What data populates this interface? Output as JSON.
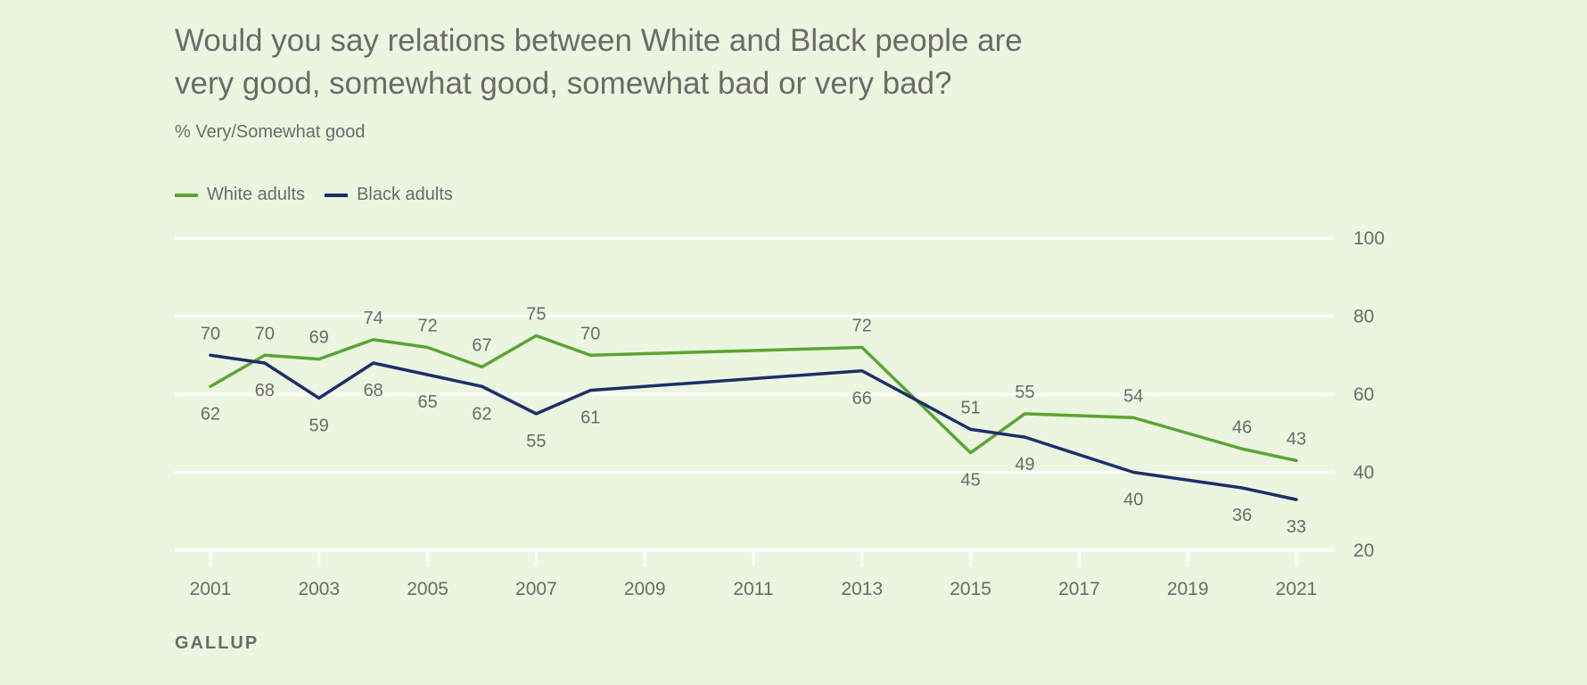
{
  "title_lines": [
    "Would you say relations between White and Black people are",
    "very good, somewhat good, somewhat bad or very bad?"
  ],
  "subtitle": "% Very/Somewhat good",
  "source": "GALLUP",
  "colors": {
    "white": "#5aa532",
    "black": "#1d2f6b",
    "grid": "#ffffff",
    "background": "#ebf5df"
  },
  "chart_data": {
    "type": "line",
    "ylim": [
      20,
      100
    ],
    "yticks": [
      20,
      40,
      60,
      80,
      100
    ],
    "xlim": [
      2001,
      2021
    ],
    "xticks": [
      2001,
      2003,
      2005,
      2007,
      2009,
      2011,
      2013,
      2015,
      2017,
      2019,
      2021
    ],
    "x_minor_ticks": [
      2001,
      2003,
      2005,
      2007,
      2009,
      2011,
      2013,
      2015,
      2017,
      2019,
      2021
    ],
    "grid": true,
    "y_axis_side": "right",
    "legend_placement": "top-left",
    "series": [
      {
        "name": "White adults",
        "color": "#5aa532",
        "label_position": "above-alternate",
        "points": [
          {
            "x": 2001,
            "y": 62,
            "label_pos": "below"
          },
          {
            "x": 2002,
            "y": 70,
            "label_pos": "above"
          },
          {
            "x": 2003,
            "y": 69,
            "label_pos": "above"
          },
          {
            "x": 2004,
            "y": 74,
            "label_pos": "above"
          },
          {
            "x": 2005,
            "y": 72,
            "label_pos": "above"
          },
          {
            "x": 2006,
            "y": 67,
            "label_pos": "above"
          },
          {
            "x": 2007,
            "y": 75,
            "label_pos": "above"
          },
          {
            "x": 2008,
            "y": 70,
            "label_pos": "above"
          },
          {
            "x": 2013,
            "y": 72,
            "label_pos": "above"
          },
          {
            "x": 2015,
            "y": 45,
            "label_pos": "below"
          },
          {
            "x": 2016,
            "y": 55,
            "label_pos": "above"
          },
          {
            "x": 2018,
            "y": 54,
            "label_pos": "above"
          },
          {
            "x": 2020,
            "y": 46,
            "label_pos": "above"
          },
          {
            "x": 2021,
            "y": 43,
            "label_pos": "above"
          }
        ]
      },
      {
        "name": "Black adults",
        "color": "#1d2f6b",
        "points": [
          {
            "x": 2001,
            "y": 70,
            "label_pos": "above"
          },
          {
            "x": 2002,
            "y": 68,
            "label_pos": "below"
          },
          {
            "x": 2003,
            "y": 59,
            "label_pos": "below"
          },
          {
            "x": 2004,
            "y": 68,
            "label_pos": "below"
          },
          {
            "x": 2005,
            "y": 65,
            "label_pos": "below"
          },
          {
            "x": 2006,
            "y": 62,
            "label_pos": "below"
          },
          {
            "x": 2007,
            "y": 55,
            "label_pos": "below"
          },
          {
            "x": 2008,
            "y": 61,
            "label_pos": "below"
          },
          {
            "x": 2013,
            "y": 66,
            "label_pos": "below"
          },
          {
            "x": 2015,
            "y": 51,
            "label_pos": "above"
          },
          {
            "x": 2016,
            "y": 49,
            "label_pos": "below"
          },
          {
            "x": 2018,
            "y": 40,
            "label_pos": "below"
          },
          {
            "x": 2020,
            "y": 36,
            "label_pos": "below"
          },
          {
            "x": 2021,
            "y": 33,
            "label_pos": "below"
          }
        ]
      }
    ]
  }
}
